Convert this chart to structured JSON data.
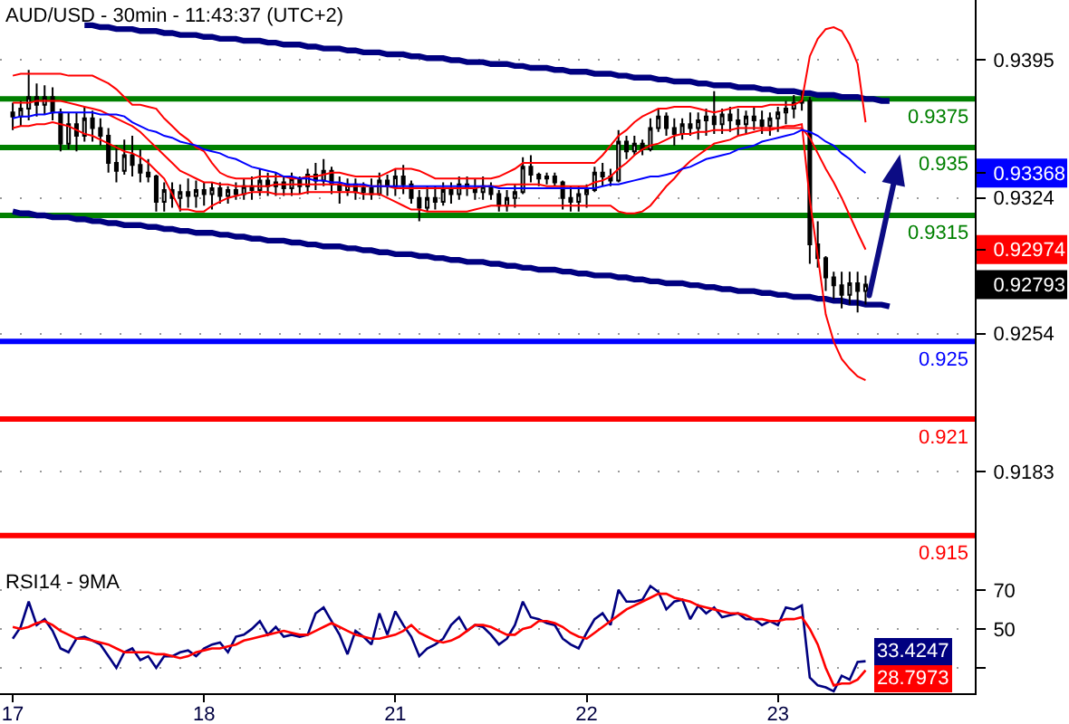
{
  "chart_data": [
    {
      "type": "candlestick",
      "title": "AUD/USD - 30min - 11:43:37 (UTC+2)",
      "color": "#000000",
      "categories": [
        "17",
        null,
        null,
        null,
        null,
        null,
        null,
        null,
        null,
        null,
        null,
        null,
        null,
        null,
        null,
        null,
        null,
        null,
        null,
        null,
        null,
        null,
        null,
        null,
        "18",
        null,
        null,
        null,
        null,
        null,
        null,
        null,
        null,
        null,
        null,
        null,
        null,
        null,
        null,
        null,
        null,
        null,
        null,
        null,
        null,
        null,
        null,
        null,
        "21",
        null,
        null,
        null,
        null,
        null,
        null,
        null,
        null,
        null,
        null,
        null,
        null,
        null,
        null,
        null,
        null,
        null,
        null,
        null,
        null,
        null,
        null,
        null,
        "22",
        null,
        null,
        null,
        null,
        null,
        null,
        null,
        null,
        null,
        null,
        null,
        null,
        null,
        null,
        null,
        null,
        null,
        null,
        null,
        null,
        null,
        null,
        null,
        "23",
        null,
        null,
        null,
        null,
        null,
        null,
        null,
        null,
        null,
        null,
        null,
        null,
        null,
        null,
        null,
        null,
        null,
        null,
        null,
        null,
        null,
        null,
        null,
        null
      ],
      "ohlc": [
        [
          0.9368,
          0.9373,
          0.9359,
          0.9366
        ],
        [
          0.9366,
          0.9374,
          0.9361,
          0.937
        ],
        [
          0.937,
          0.939,
          0.9364,
          0.9376
        ],
        [
          0.9376,
          0.9383,
          0.9366,
          0.9372
        ],
        [
          0.9372,
          0.9382,
          0.9367,
          0.9376
        ],
        [
          0.9376,
          0.9381,
          0.9364,
          0.9368
        ],
        [
          0.9368,
          0.937,
          0.9348,
          0.9352
        ],
        [
          0.9352,
          0.9368,
          0.9349,
          0.9362
        ],
        [
          0.9362,
          0.9368,
          0.9348,
          0.9356
        ],
        [
          0.9356,
          0.9371,
          0.9353,
          0.9365
        ],
        [
          0.9365,
          0.9369,
          0.9353,
          0.936
        ],
        [
          0.936,
          0.9365,
          0.9351,
          0.9356
        ],
        [
          0.9356,
          0.936,
          0.9337,
          0.9342
        ],
        [
          0.9342,
          0.9351,
          0.9332,
          0.9338
        ],
        [
          0.9338,
          0.9354,
          0.9336,
          0.9346
        ],
        [
          0.9346,
          0.9356,
          0.9335,
          0.9341
        ],
        [
          0.9341,
          0.9349,
          0.9332,
          0.9337
        ],
        [
          0.9337,
          0.9344,
          0.9332,
          0.9335
        ],
        [
          0.9335,
          0.9336,
          0.9317,
          0.9322
        ],
        [
          0.9322,
          0.9332,
          0.9317,
          0.9328
        ],
        [
          0.9328,
          0.9332,
          0.9319,
          0.9324
        ],
        [
          0.9324,
          0.9331,
          0.9317,
          0.9327
        ],
        [
          0.9327,
          0.9334,
          0.9319,
          0.9325
        ],
        [
          0.9325,
          0.9333,
          0.9319,
          0.9328
        ],
        [
          0.9328,
          0.9332,
          0.932,
          0.9326
        ],
        [
          0.9326,
          0.9332,
          0.9318,
          0.9329
        ],
        [
          0.9329,
          0.9332,
          0.9321,
          0.9325
        ],
        [
          0.9325,
          0.933,
          0.9321,
          0.9328
        ],
        [
          0.9328,
          0.9332,
          0.9323,
          0.9326
        ],
        [
          0.9326,
          0.9334,
          0.9323,
          0.933
        ],
        [
          0.933,
          0.9335,
          0.9323,
          0.9328
        ],
        [
          0.9328,
          0.9339,
          0.9325,
          0.9333
        ],
        [
          0.9333,
          0.9337,
          0.9325,
          0.933
        ],
        [
          0.933,
          0.9337,
          0.9325,
          0.9332
        ],
        [
          0.9332,
          0.9335,
          0.9325,
          0.9329
        ],
        [
          0.9329,
          0.9337,
          0.9325,
          0.9334
        ],
        [
          0.9334,
          0.9335,
          0.9326,
          0.933
        ],
        [
          0.933,
          0.9339,
          0.9326,
          0.9336
        ],
        [
          0.9336,
          0.9342,
          0.9328,
          0.9333
        ],
        [
          0.9333,
          0.9344,
          0.933,
          0.9338
        ],
        [
          0.9338,
          0.934,
          0.9326,
          0.9331
        ],
        [
          0.9331,
          0.9335,
          0.9321,
          0.9328
        ],
        [
          0.9328,
          0.9334,
          0.9325,
          0.9331
        ],
        [
          0.9331,
          0.9334,
          0.9323,
          0.9327
        ],
        [
          0.9327,
          0.9332,
          0.9323,
          0.9329
        ],
        [
          0.9329,
          0.9334,
          0.9323,
          0.9326
        ],
        [
          0.9326,
          0.9337,
          0.9325,
          0.9333
        ],
        [
          0.9333,
          0.9336,
          0.9325,
          0.933
        ],
        [
          0.933,
          0.9339,
          0.9325,
          0.9335
        ],
        [
          0.9335,
          0.9341,
          0.9326,
          0.9331
        ],
        [
          0.9331,
          0.9333,
          0.9321,
          0.9324
        ],
        [
          0.9324,
          0.9328,
          0.9312,
          0.9319
        ],
        [
          0.9319,
          0.933,
          0.9317,
          0.9324
        ],
        [
          0.9324,
          0.933,
          0.9318,
          0.9322
        ],
        [
          0.9322,
          0.9332,
          0.932,
          0.9328
        ],
        [
          0.9328,
          0.9332,
          0.9321,
          0.9326
        ],
        [
          0.9326,
          0.9335,
          0.9323,
          0.9331
        ],
        [
          0.9331,
          0.9335,
          0.9325,
          0.9329
        ],
        [
          0.9329,
          0.9334,
          0.9323,
          0.9327
        ],
        [
          0.9327,
          0.9335,
          0.9323,
          0.933
        ],
        [
          0.933,
          0.9332,
          0.9323,
          0.9326
        ],
        [
          0.9326,
          0.9328,
          0.9317,
          0.932
        ],
        [
          0.932,
          0.9328,
          0.9317,
          0.9324
        ],
        [
          0.9324,
          0.9331,
          0.9319,
          0.9327
        ],
        [
          0.9327,
          0.9345,
          0.9326,
          0.934
        ],
        [
          0.934,
          0.9346,
          0.9332,
          0.9336
        ],
        [
          0.9336,
          0.9337,
          0.933,
          0.9334
        ],
        [
          0.9334,
          0.9337,
          0.9331,
          0.9335
        ],
        [
          0.9335,
          0.9337,
          0.933,
          0.9332
        ],
        [
          0.9332,
          0.9333,
          0.9318,
          0.9324
        ],
        [
          0.9324,
          0.933,
          0.9317,
          0.9322
        ],
        [
          0.9322,
          0.933,
          0.9317,
          0.9326
        ],
        [
          0.9326,
          0.9331,
          0.9319,
          0.9328
        ],
        [
          0.9328,
          0.934,
          0.9327,
          0.9337
        ],
        [
          0.9337,
          0.9342,
          0.933,
          0.9335
        ],
        [
          0.9335,
          0.9339,
          0.933,
          0.9333
        ],
        [
          0.9333,
          0.9359,
          0.9332,
          0.9353
        ],
        [
          0.9353,
          0.9356,
          0.9344,
          0.9348
        ],
        [
          0.9348,
          0.9356,
          0.9346,
          0.9352
        ],
        [
          0.9352,
          0.9354,
          0.9346,
          0.9349
        ],
        [
          0.9349,
          0.9365,
          0.9348,
          0.936
        ],
        [
          0.936,
          0.937,
          0.9358,
          0.9366
        ],
        [
          0.9366,
          0.9368,
          0.9356,
          0.936
        ],
        [
          0.936,
          0.9365,
          0.9351,
          0.9357
        ],
        [
          0.9357,
          0.9365,
          0.9354,
          0.9362
        ],
        [
          0.9362,
          0.9368,
          0.9356,
          0.936
        ],
        [
          0.936,
          0.9368,
          0.9354,
          0.9364
        ],
        [
          0.9364,
          0.937,
          0.9356,
          0.9366
        ],
        [
          0.9366,
          0.9379,
          0.9357,
          0.9362
        ],
        [
          0.9362,
          0.937,
          0.9357,
          0.9367
        ],
        [
          0.9367,
          0.9371,
          0.9358,
          0.9364
        ],
        [
          0.9364,
          0.937,
          0.9356,
          0.9362
        ],
        [
          0.9362,
          0.9369,
          0.9357,
          0.9366
        ],
        [
          0.9366,
          0.9371,
          0.9359,
          0.9364
        ],
        [
          0.9364,
          0.9369,
          0.9357,
          0.9361
        ],
        [
          0.9361,
          0.9368,
          0.9356,
          0.9365
        ],
        [
          0.9365,
          0.9371,
          0.9358,
          0.9368
        ],
        [
          0.9368,
          0.9374,
          0.9362,
          0.937
        ],
        [
          0.937,
          0.9377,
          0.9365,
          0.9373
        ],
        [
          0.9373,
          0.9379,
          0.9369,
          0.9374
        ],
        [
          0.9374,
          0.9376,
          0.929,
          0.93
        ],
        [
          0.93,
          0.9312,
          0.9288,
          0.9293
        ],
        [
          0.9293,
          0.9294,
          0.9276,
          0.9283
        ],
        [
          0.9283,
          0.9286,
          0.9272,
          0.9279
        ],
        [
          0.9279,
          0.9286,
          0.9267,
          0.9274
        ],
        [
          0.9274,
          0.9286,
          0.9269,
          0.928
        ],
        [
          0.928,
          0.9286,
          0.9265,
          0.9276
        ],
        [
          0.9276,
          0.9284,
          0.9269,
          0.92793
        ],
        null,
        null,
        null,
        null,
        null,
        null,
        null,
        null,
        null,
        null,
        null,
        null,
        null
      ],
      "series": [
        {
          "type": "line",
          "color": "#ff0000",
          "values": [
            0.9387,
            0.9388,
            0.9388,
            0.9388,
            0.9388,
            0.9388,
            0.9388,
            0.9387,
            0.9387,
            0.9387,
            0.9387,
            0.9385,
            0.9383,
            0.938,
            0.9376,
            0.9372,
            0.9372,
            0.9371,
            0.937,
            0.9365,
            0.9361,
            0.9357,
            0.9354,
            0.935,
            0.9348,
            0.9342,
            0.9337,
            0.9335,
            0.9334,
            0.9334,
            0.9334,
            0.9335,
            0.9335,
            0.9335,
            0.9335,
            0.9334,
            0.9334,
            0.9335,
            0.9335,
            0.9336,
            0.9337,
            0.9337,
            0.9336,
            0.9335,
            0.9335,
            0.9335,
            0.9335,
            0.9337,
            0.9339,
            0.9339,
            0.9339,
            0.9338,
            0.9336,
            0.9334,
            0.9334,
            0.9334,
            0.9334,
            0.9334,
            0.9334,
            0.9334,
            0.9334,
            0.9335,
            0.9337,
            0.9339,
            0.9342,
            0.9342,
            0.9342,
            0.9342,
            0.9342,
            0.9342,
            0.9342,
            0.9342,
            0.9342,
            0.9342,
            0.9346,
            0.9351,
            0.9356,
            0.9359,
            0.9363,
            0.9366,
            0.9368,
            0.937,
            0.937,
            0.9371,
            0.9371,
            0.9371,
            0.937,
            0.9369,
            0.9368,
            0.9369,
            0.937,
            0.9371,
            0.9371,
            0.9371,
            0.9371,
            0.9372,
            0.9372,
            0.9372,
            0.9372,
            0.9374,
            0.9397,
            0.9406,
            0.9411,
            0.9412,
            0.941,
            0.9403,
            0.9393,
            0.9363,
            null,
            null,
            null,
            null,
            null,
            null,
            null,
            null,
            null,
            null,
            null,
            null,
            null
          ]
        },
        {
          "type": "line",
          "color": "#ff0000",
          "values": [
            0.9373,
            0.9373,
            0.9373,
            0.9374,
            0.9374,
            0.9374,
            0.9374,
            0.9373,
            0.9372,
            0.9371,
            0.937,
            0.9369,
            0.9367,
            0.9365,
            0.9363,
            0.9361,
            0.9358,
            0.9354,
            0.935,
            0.9346,
            0.9342,
            0.9338,
            0.9336,
            0.9334,
            0.9332,
            0.9332,
            0.9331,
            0.9331,
            0.933,
            0.933,
            0.933,
            0.933,
            0.933,
            0.9331,
            0.9331,
            0.9331,
            0.9331,
            0.9331,
            0.9331,
            0.9331,
            0.9331,
            0.9331,
            0.933,
            0.933,
            0.933,
            0.933,
            0.933,
            0.933,
            0.9329,
            0.9329,
            0.9329,
            0.9329,
            0.9329,
            0.9329,
            0.9329,
            0.9329,
            0.9329,
            0.9329,
            0.9329,
            0.933,
            0.933,
            0.933,
            0.9331,
            0.9331,
            0.9331,
            0.9331,
            0.9331,
            0.933,
            0.933,
            0.933,
            0.933,
            0.933,
            0.933,
            0.9332,
            0.9333,
            0.9335,
            0.9339,
            0.9342,
            0.9346,
            0.9349,
            0.9351,
            0.9352,
            0.9354,
            0.9356,
            0.9357,
            0.9357,
            0.9358,
            0.9358,
            0.9359,
            0.9359,
            0.9359,
            0.936,
            0.936,
            0.936,
            0.936,
            0.936,
            0.936,
            0.936,
            0.936,
            0.936,
            0.9355,
            0.9347,
            0.9339,
            0.9332,
            0.9324,
            0.9315,
            0.9306,
            0.92974,
            null,
            null,
            null,
            null,
            null,
            null,
            null,
            null,
            null,
            null,
            null,
            null,
            null
          ]
        },
        {
          "type": "line",
          "color": "#ff0000",
          "values": [
            0.936,
            0.9361,
            0.9361,
            0.9362,
            0.9362,
            0.9363,
            0.9362,
            0.9361,
            0.9359,
            0.9357,
            0.9356,
            0.9354,
            0.9352,
            0.935,
            0.9348,
            0.9347,
            0.9345,
            0.9342,
            0.9338,
            0.9334,
            0.9326,
            0.9318,
            0.9318,
            0.9317,
            0.9317,
            0.932,
            0.9322,
            0.9324,
            0.9325,
            0.9326,
            0.9327,
            0.9327,
            0.9327,
            0.9326,
            0.9326,
            0.9326,
            0.9326,
            0.9327,
            0.9327,
            0.9327,
            0.9327,
            0.9327,
            0.9327,
            0.9327,
            0.9326,
            0.9326,
            0.9326,
            0.9324,
            0.9322,
            0.932,
            0.9318,
            0.9318,
            0.9317,
            0.9317,
            0.9317,
            0.9317,
            0.9317,
            0.9317,
            0.9318,
            0.9319,
            0.932,
            0.932,
            0.932,
            0.932,
            0.932,
            0.932,
            0.932,
            0.932,
            0.932,
            0.932,
            0.932,
            0.932,
            0.932,
            0.932,
            0.932,
            0.932,
            0.9317,
            0.9316,
            0.9316,
            0.9317,
            0.932,
            0.9325,
            0.933,
            0.9334,
            0.9339,
            0.9343,
            0.9346,
            0.9349,
            0.9352,
            0.9353,
            0.9354,
            0.9356,
            0.9357,
            0.9358,
            0.9359,
            0.9359,
            0.936,
            0.9361,
            0.9361,
            0.9362,
            0.9323,
            0.9294,
            0.9264,
            0.925,
            0.9241,
            0.9236,
            0.9232,
            0.923,
            null,
            null,
            null,
            null,
            null,
            null,
            null,
            null,
            null,
            null,
            null,
            null,
            null
          ]
        },
        {
          "type": "line",
          "color": "#0000ff",
          "values": [
            0.9365,
            0.9366,
            0.9366,
            0.9367,
            0.9367,
            0.9368,
            0.9368,
            0.9368,
            0.9368,
            0.9368,
            0.9368,
            0.9367,
            0.9367,
            0.9367,
            0.9366,
            0.9363,
            0.9361,
            0.9359,
            0.9358,
            0.9356,
            0.9355,
            0.9353,
            0.9352,
            0.9351,
            0.9349,
            0.9348,
            0.9347,
            0.9345,
            0.9344,
            0.9342,
            0.934,
            0.9339,
            0.9338,
            0.9337,
            0.9335,
            0.9335,
            0.9334,
            0.9334,
            0.9333,
            0.9333,
            0.9332,
            0.9332,
            0.9331,
            0.9331,
            0.9331,
            0.933,
            0.933,
            0.933,
            0.933,
            0.933,
            0.933,
            0.933,
            0.933,
            0.933,
            0.933,
            0.933,
            0.933,
            0.933,
            0.933,
            0.933,
            0.933,
            0.9329,
            0.9329,
            0.9329,
            0.9329,
            0.9329,
            0.9329,
            0.9329,
            0.9329,
            0.9329,
            0.9329,
            0.9329,
            0.9329,
            0.9329,
            0.933,
            0.9331,
            0.9331,
            0.9332,
            0.9333,
            0.9334,
            0.9335,
            0.9335,
            0.9336,
            0.9337,
            0.9339,
            0.934,
            0.9342,
            0.9344,
            0.9345,
            0.9346,
            0.9347,
            0.9349,
            0.935,
            0.9351,
            0.9353,
            0.9354,
            0.9355,
            0.9356,
            0.9357,
            0.9359,
            0.9358,
            0.9356,
            0.9353,
            0.9351,
            0.9347,
            0.9344,
            0.934,
            0.93368,
            null,
            null,
            null,
            null,
            null,
            null,
            null,
            null,
            null,
            null,
            null,
            null,
            null
          ]
        },
        {
          "type": "line",
          "color": "#000080",
          "values": [
            null,
            null,
            null,
            null,
            null,
            null,
            null,
            null,
            null,
            0.9413,
            0.9413,
            0.9412,
            0.9412,
            0.9411,
            0.9411,
            0.9411,
            0.941,
            0.941,
            0.941,
            0.9409,
            0.9409,
            0.9408,
            0.9408,
            0.9408,
            0.9407,
            0.9407,
            0.9406,
            0.9406,
            0.9406,
            0.9405,
            0.9405,
            0.9405,
            0.9404,
            0.9404,
            0.9403,
            0.9403,
            0.9403,
            0.9402,
            0.9402,
            0.9401,
            0.9401,
            0.9401,
            0.94,
            0.94,
            0.9399,
            0.9399,
            0.9399,
            0.9398,
            0.9398,
            0.9398,
            0.9397,
            0.9397,
            0.9396,
            0.9396,
            0.9396,
            0.9395,
            0.9395,
            0.9394,
            0.9394,
            0.9394,
            0.9393,
            0.9393,
            0.9393,
            0.9392,
            0.9392,
            0.9391,
            0.9391,
            0.9391,
            0.939,
            0.939,
            0.9389,
            0.9389,
            0.9389,
            0.9388,
            0.9388,
            0.9388,
            0.9387,
            0.9387,
            0.9386,
            0.9386,
            0.9386,
            0.9385,
            0.9385,
            0.9384,
            0.9384,
            0.9384,
            0.9383,
            0.9383,
            0.9382,
            0.9382,
            0.9382,
            0.9381,
            0.9381,
            0.9381,
            0.938,
            0.938,
            0.9379,
            0.9379,
            0.9379,
            0.9378,
            0.9378,
            0.9377,
            0.9377,
            0.9377,
            0.9376,
            0.9376,
            0.9376,
            0.9375,
            0.9375,
            0.9374,
            0.9374,
            null,
            null,
            null,
            null,
            null,
            null,
            null,
            null,
            null,
            null
          ]
        },
        {
          "type": "line",
          "color": "#000080",
          "values": [
            0.9317,
            0.9316,
            0.9316,
            0.9315,
            0.9315,
            0.9314,
            0.9314,
            0.9314,
            0.9313,
            0.9313,
            0.9312,
            0.9312,
            0.9311,
            0.9311,
            0.931,
            0.931,
            0.931,
            0.9309,
            0.9309,
            0.9308,
            0.9308,
            0.9307,
            0.9307,
            0.9306,
            0.9306,
            0.9306,
            0.9305,
            0.9305,
            0.9304,
            0.9304,
            0.9303,
            0.9303,
            0.9302,
            0.9302,
            0.9302,
            0.9301,
            0.9301,
            0.93,
            0.93,
            0.9299,
            0.9299,
            0.9299,
            0.9298,
            0.9298,
            0.9297,
            0.9297,
            0.9296,
            0.9296,
            0.9295,
            0.9295,
            0.9295,
            0.9294,
            0.9294,
            0.9293,
            0.9293,
            0.9292,
            0.9292,
            0.9291,
            0.9291,
            0.9291,
            0.929,
            0.929,
            0.9289,
            0.9289,
            0.9288,
            0.9288,
            0.9287,
            0.9287,
            0.9287,
            0.9286,
            0.9286,
            0.9285,
            0.9285,
            0.9284,
            0.9284,
            0.9284,
            0.9283,
            0.9283,
            0.9282,
            0.9282,
            0.9281,
            0.9281,
            0.928,
            0.928,
            0.928,
            0.9279,
            0.9279,
            0.9278,
            0.9278,
            0.9277,
            0.9277,
            0.9276,
            0.9276,
            0.9276,
            0.9275,
            0.9275,
            0.9274,
            0.9274,
            0.9273,
            0.9273,
            0.9273,
            0.9272,
            0.9272,
            0.9271,
            0.9271,
            0.927,
            0.927,
            0.9269,
            0.9269,
            0.9269,
            0.9268,
            null,
            null,
            null,
            null,
            null,
            null,
            null,
            null,
            null,
            null
          ]
        }
      ],
      "ref_lines": [
        {
          "axis": "y",
          "value": 0.9375,
          "label": "0.9375",
          "color": "#008000"
        },
        {
          "axis": "y",
          "value": 0.935,
          "label": "0.935",
          "color": "#008000"
        },
        {
          "axis": "y",
          "value": 0.9315,
          "label": "0.9315",
          "color": "#008000"
        },
        {
          "axis": "y",
          "value": 0.925,
          "label": "0.925",
          "color": "#0000ff"
        },
        {
          "axis": "y",
          "value": 0.921,
          "label": "0.921",
          "color": "#ff0000"
        },
        {
          "axis": "y",
          "value": 0.915,
          "label": "0.915",
          "color": "#ff0000"
        }
      ],
      "ylim": [
        0.9134,
        0.9426
      ],
      "yticks": [
        0.9395,
        0.93368,
        0.9324,
        0.92974,
        0.92793,
        0.9254,
        0.9183
      ],
      "grid": "y",
      "tick_labels": "y"
    },
    {
      "type": "line",
      "title": "RSI14 - 9MA",
      "categories": [
        "17",
        null,
        null,
        null,
        null,
        null,
        null,
        null,
        null,
        null,
        null,
        null,
        null,
        null,
        null,
        null,
        null,
        null,
        null,
        null,
        null,
        null,
        null,
        null,
        "18",
        null,
        null,
        null,
        null,
        null,
        null,
        null,
        null,
        null,
        null,
        null,
        null,
        null,
        null,
        null,
        null,
        null,
        null,
        null,
        null,
        null,
        null,
        null,
        "21",
        null,
        null,
        null,
        null,
        null,
        null,
        null,
        null,
        null,
        null,
        null,
        null,
        null,
        null,
        null,
        null,
        null,
        null,
        null,
        null,
        null,
        null,
        null,
        "22",
        null,
        null,
        null,
        null,
        null,
        null,
        null,
        null,
        null,
        null,
        null,
        null,
        null,
        null,
        null,
        null,
        null,
        null,
        null,
        null,
        null,
        null,
        null,
        "23",
        null,
        null,
        null,
        null,
        null,
        null,
        null,
        null,
        null,
        null,
        null,
        null,
        null,
        null,
        null,
        null,
        null,
        null,
        null,
        null,
        null,
        null,
        null,
        null
      ],
      "series": [
        {
          "color": "#000080",
          "values": [
            45,
            51,
            64,
            52,
            55,
            49,
            40,
            38,
            45,
            46,
            44,
            42,
            36,
            30,
            38,
            40,
            34,
            36,
            30,
            36,
            36,
            38,
            39,
            36,
            40,
            42,
            43,
            38,
            46,
            47,
            50,
            54,
            47,
            51,
            46,
            47,
            46,
            47,
            58,
            61,
            54,
            47,
            37,
            49,
            46,
            42,
            58,
            47,
            59,
            52,
            46,
            36,
            40,
            42,
            45,
            52,
            56,
            49,
            52,
            51,
            47,
            42,
            45,
            52,
            64,
            56,
            55,
            53,
            52,
            45,
            42,
            40,
            48,
            55,
            58,
            52,
            70,
            64,
            64,
            65,
            72,
            69,
            60,
            64,
            65,
            55,
            62,
            58,
            61,
            56,
            57,
            58,
            55,
            55,
            52,
            54,
            52,
            61,
            60,
            62,
            25,
            21,
            20,
            18,
            26,
            24,
            33,
            33.4247,
            null,
            null,
            null,
            null,
            null,
            null,
            null,
            null,
            null,
            null,
            null,
            null,
            null
          ],
          "value_labels": [
            null,
            null,
            null,
            null,
            null,
            null,
            null,
            null,
            null,
            null,
            null,
            null,
            null,
            null,
            null,
            null,
            null,
            null,
            null,
            null,
            null,
            null,
            null,
            null,
            null,
            null,
            null,
            null,
            null,
            null,
            null,
            null,
            null,
            null,
            null,
            null,
            null,
            null,
            null,
            null,
            null,
            null,
            null,
            null,
            null,
            null,
            null,
            null,
            null,
            null,
            null,
            null,
            null,
            null,
            null,
            null,
            null,
            null,
            null,
            null,
            null,
            null,
            null,
            null,
            null,
            null,
            null,
            null,
            null,
            null,
            null,
            null,
            null,
            null,
            null,
            null,
            null,
            null,
            null,
            null,
            null,
            null,
            null,
            null,
            null,
            null,
            null,
            null,
            null,
            null,
            null,
            null,
            null,
            null,
            null,
            null,
            null,
            null,
            null,
            null,
            null,
            null,
            null,
            null,
            null,
            null,
            null,
            "33.4247",
            null,
            null,
            null,
            null,
            null,
            null,
            null,
            null,
            null,
            null,
            null,
            null,
            null
          ]
        },
        {
          "color": "#ff0000",
          "values": [
            51,
            50,
            51,
            53,
            54,
            52,
            49,
            47,
            45,
            45,
            44,
            43,
            42,
            40,
            38,
            38,
            38,
            38,
            37,
            37,
            36,
            35,
            36,
            38,
            39,
            40,
            40,
            41,
            42,
            44,
            45,
            46,
            47,
            48,
            49,
            48,
            47,
            47,
            49,
            51,
            53,
            51,
            49,
            47,
            46,
            45,
            45,
            46,
            47,
            49,
            52,
            48,
            46,
            44,
            43,
            44,
            46,
            49,
            52,
            52,
            51,
            49,
            47,
            47,
            50,
            51,
            54,
            54,
            53,
            51,
            48,
            46,
            45,
            48,
            51,
            54,
            57,
            60,
            62,
            64,
            66,
            68,
            68,
            66,
            65,
            64,
            62,
            61,
            60,
            59,
            58,
            58,
            57,
            55,
            55,
            54,
            54,
            55,
            55,
            56,
            50,
            42,
            30,
            21,
            22,
            22,
            24,
            28.7973,
            null,
            null,
            null,
            null,
            null,
            null,
            null,
            null,
            null,
            null,
            null,
            null,
            null
          ],
          "value_labels": [
            null,
            null,
            null,
            null,
            null,
            null,
            null,
            null,
            null,
            null,
            null,
            null,
            null,
            null,
            null,
            null,
            null,
            null,
            null,
            null,
            null,
            null,
            null,
            null,
            null,
            null,
            null,
            null,
            null,
            null,
            null,
            null,
            null,
            null,
            null,
            null,
            null,
            null,
            null,
            null,
            null,
            null,
            null,
            null,
            null,
            null,
            null,
            null,
            null,
            null,
            null,
            null,
            null,
            null,
            null,
            null,
            null,
            null,
            null,
            null,
            null,
            null,
            null,
            null,
            null,
            null,
            null,
            null,
            null,
            null,
            null,
            null,
            null,
            null,
            null,
            null,
            null,
            null,
            null,
            null,
            null,
            null,
            null,
            null,
            null,
            null,
            null,
            null,
            null,
            null,
            null,
            null,
            null,
            null,
            null,
            null,
            null,
            null,
            null,
            null,
            null,
            null,
            null,
            null,
            null,
            null,
            null,
            "28.7973",
            null,
            null,
            null,
            null,
            null,
            null,
            null,
            null,
            null,
            null,
            null,
            null,
            null
          ]
        }
      ],
      "ylim": [
        17,
        82
      ],
      "yticks": [
        {
          "value": 30,
          "label": null
        },
        50,
        70
      ],
      "grid": "y"
    }
  ]
}
